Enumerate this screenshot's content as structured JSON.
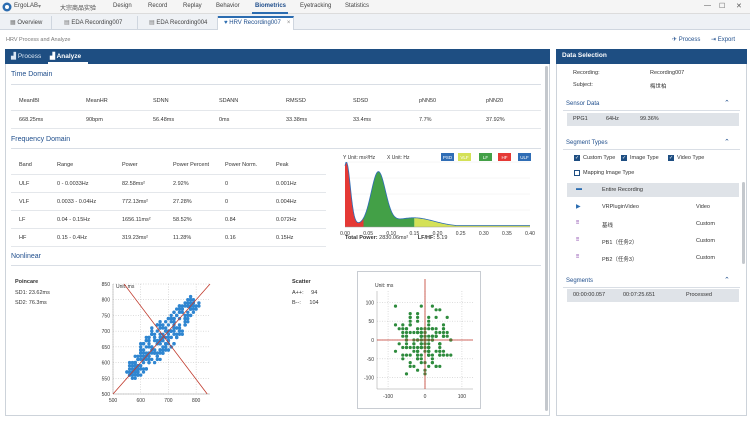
{
  "app": {
    "name": "ErgoLAB",
    "project": "大宗商品实验",
    "menu": [
      "Design",
      "Record",
      "Replay",
      "Behavior",
      "Biometrics",
      "Eyetracking",
      "Statistics"
    ],
    "active_menu": "Biometrics",
    "window_controls": [
      "—",
      "☐",
      "✕"
    ]
  },
  "tabs": [
    {
      "label": "Overview"
    },
    {
      "label": "EDA Recording007"
    },
    {
      "label": "EDA Recording004"
    },
    {
      "label": "HRV Recording007",
      "close": "×"
    }
  ],
  "page": {
    "subtitle": "HRV Process and Analyze",
    "process_link": "Process",
    "export_link": "Export"
  },
  "left": {
    "tabs": [
      "Process",
      "Analyze"
    ],
    "time_domain": {
      "title": "Time Domain",
      "headers": [
        "MeanIBI",
        "MeanHR",
        "SDNN",
        "SDANN",
        "RMSSD",
        "SDSD",
        "pNN50",
        "pNN20"
      ],
      "values": [
        "668.25ms",
        "90bpm",
        "56.48ms",
        "0ms",
        "33.38ms",
        "33.4ms",
        "7.7%",
        "37.92%"
      ]
    },
    "frequency_domain": {
      "title": "Frequency Domain",
      "headers": [
        "Band",
        "Range",
        "Power",
        "Power Percent",
        "Power Norm.",
        "Peak"
      ],
      "rows": [
        [
          "ULF",
          "0 - 0.0033Hz",
          "82.58ms²",
          "2.92%",
          "0",
          "0.001Hz"
        ],
        [
          "VLF",
          "0.0033 - 0.04Hz",
          "772.13ms²",
          "27.28%",
          "0",
          "0.004Hz"
        ],
        [
          "LF",
          "0.04 - 0.15Hz",
          "1656.11ms²",
          "58.52%",
          "0.84",
          "0.072Hz"
        ],
        [
          "HF",
          "0.15 - 0.4Hz",
          "319.23ms²",
          "11.28%",
          "0.16",
          "0.15Hz"
        ]
      ],
      "psd": {
        "y_unit": "Y Unit: ms²/Hz",
        "x_unit": "X Unit: Hz",
        "legend": [
          "PSD",
          "VLF",
          "LF",
          "HF",
          "ULF"
        ],
        "x_ticks": [
          "0.00",
          "0.05",
          "0.10",
          "0.15",
          "0.20",
          "0.25",
          "0.30",
          "0.35",
          "0.40"
        ],
        "total_power_label": "Total Power:",
        "total_power": "2830.06ms²",
        "lf_hf_label": "LF/HF:",
        "lf_hf": "5.19"
      }
    },
    "nonlinear": {
      "title": "Nonlinear",
      "poincare": {
        "title": "Poincare",
        "sd1": "SD1: 23.62ms",
        "sd2": "SD2: 76.3ms",
        "unit": "Unit: ms"
      },
      "poincare_y_ticks": [
        "850",
        "800",
        "750",
        "700",
        "650",
        "600",
        "550",
        "500"
      ],
      "poincare_x_ticks": [
        "500",
        "600",
        "700",
        "800"
      ],
      "scatter": {
        "title": "Scatter",
        "a_label": "A++:",
        "a_value": "94",
        "b_label": "B--:",
        "b_value": "104",
        "unit": "Unit: ms"
      },
      "scatter_y_ticks": [
        "100",
        "50",
        "0",
        "-50",
        "-100"
      ],
      "scatter_x_ticks": [
        "-100",
        "0",
        "100"
      ]
    }
  },
  "right": {
    "title": "Data Selection",
    "recording_label": "Recording:",
    "recording_value": "Recording007",
    "subject_label": "Subject:",
    "subject_value": "梅世柏",
    "sensor_data": {
      "title": "Sensor Data",
      "sensor": "PPG1",
      "rate": "64Hz",
      "quality": "99.36%"
    },
    "segment_types": {
      "title": "Segment Types",
      "checks": [
        {
          "label": "Custom Type",
          "checked": true
        },
        {
          "label": "Image Type",
          "checked": true
        },
        {
          "label": "Video Type",
          "checked": true
        },
        {
          "label": "Mapping Image Type",
          "checked": false
        }
      ],
      "rows": [
        {
          "name": "Entire Recording",
          "type": ""
        },
        {
          "name": "VRPluginVideo",
          "type": "Video"
        },
        {
          "name": "基线",
          "type": "Custom"
        },
        {
          "name": "PB1（任务2）",
          "type": "Custom"
        },
        {
          "name": "PB2（任务3）",
          "type": "Custom"
        }
      ]
    },
    "segments": {
      "title": "Segments",
      "start": "00:00:00.057",
      "end": "00:07:25.651",
      "status": "Processed"
    }
  },
  "colors": {
    "accent": "#1e4e82",
    "vlf": "#e53935",
    "lf": "#43a047",
    "hf": "#d4e157",
    "psd": "#2f6db5",
    "scatter_point": "#2e8b3d"
  }
}
